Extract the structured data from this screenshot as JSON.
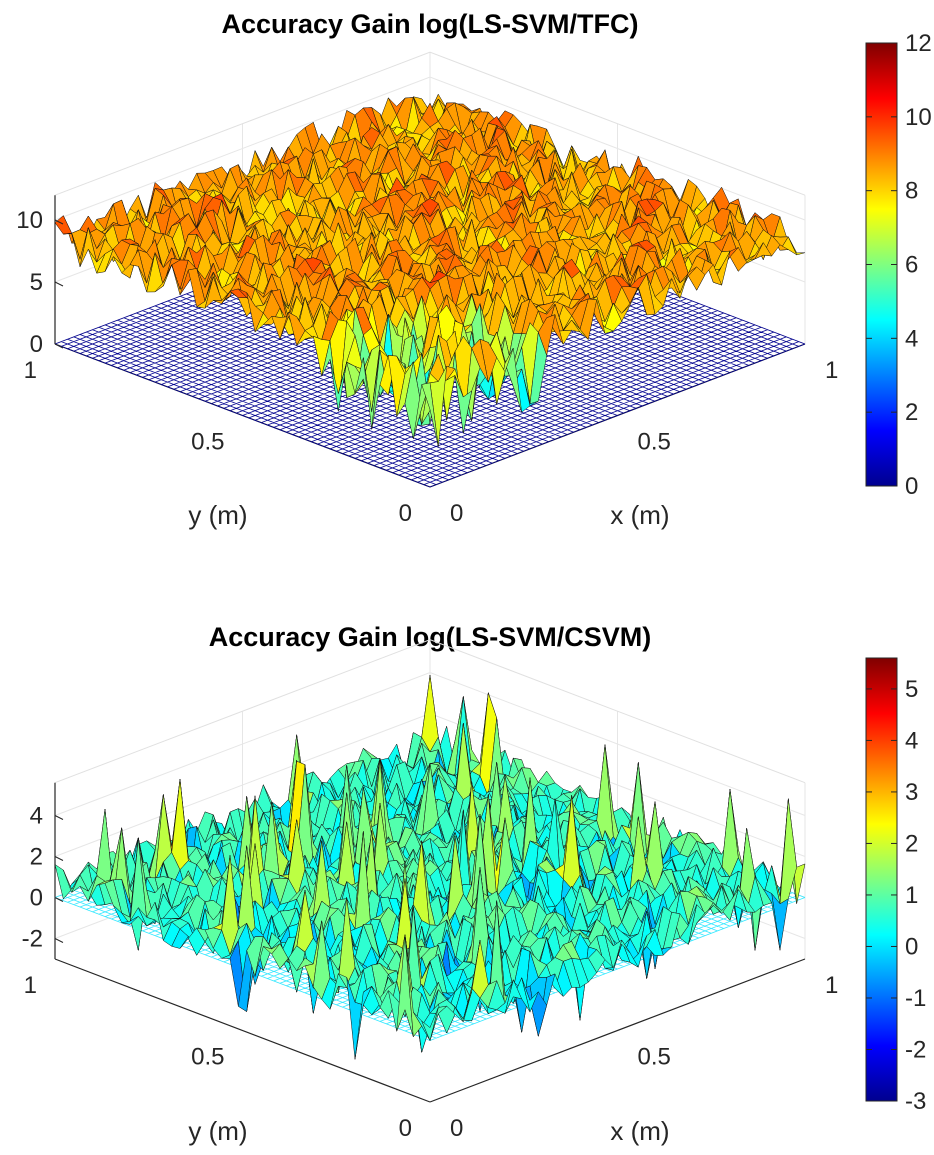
{
  "chart_data": [
    {
      "type": "surface",
      "title": "Accuracy Gain log(LS-SVM/TFC)",
      "xlabel": "x (m)",
      "ylabel": "y (m)",
      "x_range": [
        0,
        1
      ],
      "y_range": [
        0,
        1
      ],
      "x_ticks": [
        "0",
        "0.5",
        "1"
      ],
      "y_ticks": [
        "0",
        "0.5",
        "1"
      ],
      "z_ticks": [
        "0",
        "5",
        "10"
      ],
      "zlim": [
        0,
        12
      ],
      "surface_mean": 8.5,
      "surface_spread": 1.6,
      "center_dip_min": 2.5,
      "reference_plane_z": 0,
      "reference_plane_color": "#00008f",
      "colormap": "jet",
      "colorbar": {
        "min": 0,
        "max": 12,
        "ticks": [
          "0",
          "2",
          "4",
          "6",
          "8",
          "10",
          "12"
        ]
      }
    },
    {
      "type": "surface",
      "title": "Accuracy Gain log(LS-SVM/CSVM)",
      "xlabel": "x (m)",
      "ylabel": "y (m)",
      "x_range": [
        0,
        1
      ],
      "y_range": [
        0,
        1
      ],
      "x_ticks": [
        "0",
        "0.5",
        "1"
      ],
      "y_ticks": [
        "0",
        "0.5",
        "1"
      ],
      "z_ticks": [
        "-2",
        "0",
        "2",
        "4"
      ],
      "zlim": [
        -3,
        5.6
      ],
      "surface_mean": 0.6,
      "surface_spread": 1.1,
      "peak_value": 5,
      "reference_plane_z": 0,
      "reference_plane_color": "#33e8ff",
      "colormap": "jet",
      "colorbar": {
        "min": -3,
        "max": 5.6,
        "ticks": [
          "-3",
          "-2",
          "-1",
          "0",
          "1",
          "2",
          "3",
          "4",
          "5"
        ]
      }
    }
  ]
}
